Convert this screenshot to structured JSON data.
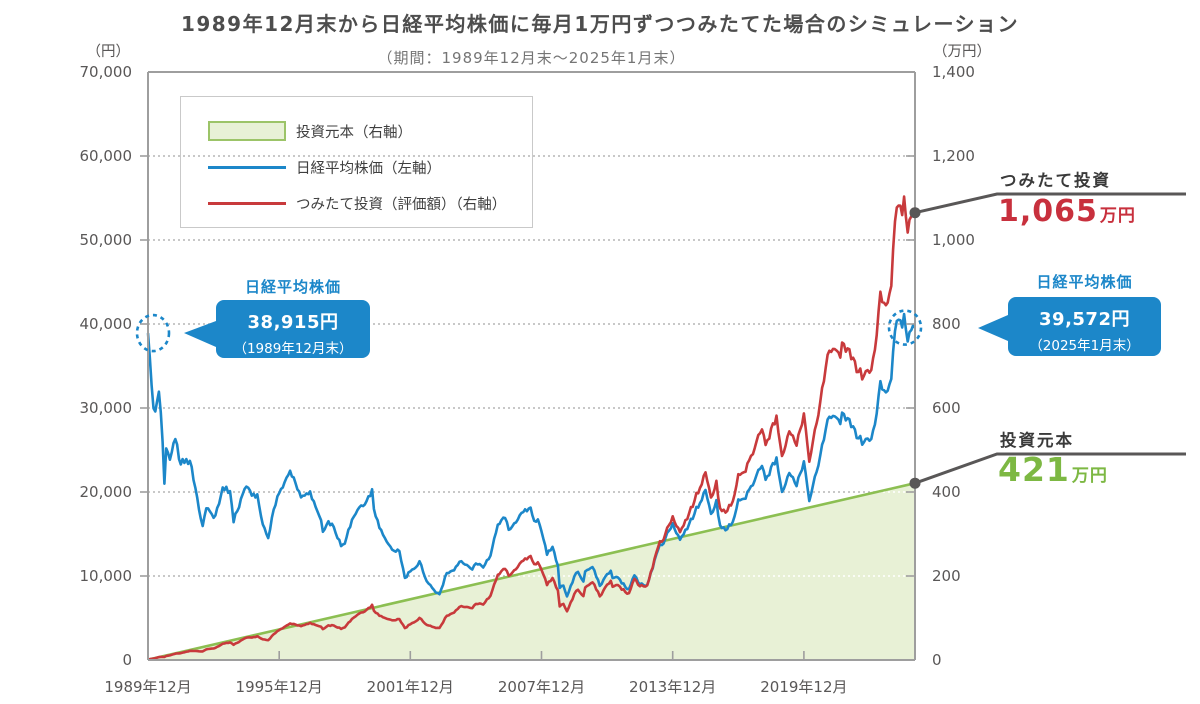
{
  "title": "1989年12月末から日経平均株価に毎月1万円ずつつみたてた場合のシミュレーション",
  "subtitle": "（期間：1989年12月末～2025年1月末）",
  "left_axis": {
    "unit": "（円）",
    "tick_labels": [
      "70,000",
      "60,000",
      "50,000",
      "40,000",
      "30,000",
      "20,000",
      "10,000",
      "0"
    ]
  },
  "right_axis": {
    "unit": "（万円）",
    "tick_labels": [
      "1,400",
      "1,200",
      "1,000",
      "800",
      "600",
      "400",
      "200",
      "0"
    ]
  },
  "legend": [
    {
      "label": "投資元本（右軸）",
      "swatch": "area-green"
    },
    {
      "label": "日経平均株価（左軸）",
      "swatch": "line-blue"
    },
    {
      "label": "つみたて投資（評価額）（右軸）",
      "swatch": "line-red"
    }
  ],
  "annotations": {
    "start": {
      "title": "日経平均株価",
      "value": "38,915円",
      "date": "（1989年12月末）"
    },
    "end": {
      "title": "日経平均株価",
      "value": "39,572円",
      "date": "（2025年1月末）"
    },
    "tsumitate": {
      "label": "つみたて投資",
      "value": "1,065",
      "unit": "万円"
    },
    "principal": {
      "label": "投資元本",
      "value": "421",
      "unit": "万円"
    }
  },
  "colors": {
    "nikkei_line": "#1c87c9",
    "tsumitate_line": "#c83a3c",
    "value_red": "#c8303d",
    "principal_fill": "#e8f1d6",
    "principal_edge": "#8cbf52",
    "value_green": "#7db843",
    "callout_gray": "#595757",
    "annotation_box": "#1c87c9",
    "grid": "#b5b5b5",
    "axis": "#9e9e9e",
    "tick_text": "#595757"
  },
  "chart_data": {
    "type": "line",
    "x_unit": "months since 1989-12",
    "total_months": 421,
    "left_axis": {
      "label": "円",
      "range": [
        0,
        70000
      ],
      "gridline_step": 10000
    },
    "right_axis": {
      "label": "万円",
      "range": [
        0,
        1400
      ],
      "gridline_step": 200
    },
    "grid": "dotted-horizontal",
    "legend_position": "top-left-inside",
    "x_ticks": [
      {
        "month": 0,
        "label": "1989年12月"
      },
      {
        "month": 72,
        "label": "1995年12月"
      },
      {
        "month": 144,
        "label": "2001年12月"
      },
      {
        "month": 216,
        "label": "2007年12月"
      },
      {
        "month": 288,
        "label": "2013年12月"
      },
      {
        "month": 360,
        "label": "2019年12月"
      }
    ],
    "series": [
      {
        "id": "principal",
        "name": "投資元本（右軸）",
        "axis": "right",
        "type": "area",
        "unit": "万円",
        "shape": "linear",
        "start_man": 1,
        "end_man": 421
      },
      {
        "id": "nikkei",
        "name": "日経平均株価（左軸）",
        "axis": "left",
        "type": "line",
        "unit": "円",
        "anchors": [
          [
            0,
            38915
          ],
          [
            3,
            29980
          ],
          [
            4,
            29585
          ],
          [
            6,
            31940
          ],
          [
            8,
            25978
          ],
          [
            9,
            20984
          ],
          [
            10,
            25194
          ],
          [
            12,
            23849
          ],
          [
            15,
            26292
          ],
          [
            18,
            23291
          ],
          [
            21,
            23916
          ],
          [
            24,
            22984
          ],
          [
            27,
            19346
          ],
          [
            30,
            15952
          ],
          [
            32,
            18061
          ],
          [
            36,
            16925
          ],
          [
            39,
            18591
          ],
          [
            41,
            20552
          ],
          [
            45,
            20106
          ],
          [
            47,
            16406
          ],
          [
            48,
            17417
          ],
          [
            54,
            20644
          ],
          [
            57,
            19564
          ],
          [
            60,
            19723
          ],
          [
            63,
            16140
          ],
          [
            66,
            14517
          ],
          [
            69,
            17913
          ],
          [
            72,
            19868
          ],
          [
            78,
            22531
          ],
          [
            84,
            19361
          ],
          [
            89,
            20069
          ],
          [
            92,
            18229
          ],
          [
            95,
            16636
          ],
          [
            96,
            15259
          ],
          [
            99,
            16527
          ],
          [
            102,
            15830
          ],
          [
            106,
            13565
          ],
          [
            108,
            13842
          ],
          [
            112,
            16702
          ],
          [
            115,
            17861
          ],
          [
            120,
            18934
          ],
          [
            123,
            20337
          ],
          [
            124,
            17974
          ],
          [
            127,
            15727
          ],
          [
            130,
            14540
          ],
          [
            132,
            13786
          ],
          [
            135,
            12999
          ],
          [
            138,
            12969
          ],
          [
            141,
            9775
          ],
          [
            144,
            10543
          ],
          [
            147,
            11025
          ],
          [
            149,
            11764
          ],
          [
            153,
            9383
          ],
          [
            156,
            8579
          ],
          [
            159,
            7973
          ],
          [
            160,
            7831
          ],
          [
            164,
            10343
          ],
          [
            168,
            10677
          ],
          [
            172,
            11762
          ],
          [
            175,
            11326
          ],
          [
            178,
            10772
          ],
          [
            180,
            11489
          ],
          [
            184,
            11009
          ],
          [
            188,
            12414
          ],
          [
            192,
            16111
          ],
          [
            196,
            16906
          ],
          [
            198,
            15505
          ],
          [
            204,
            17226
          ],
          [
            206,
            17604
          ],
          [
            210,
            18138
          ],
          [
            212,
            16569
          ],
          [
            214,
            16738
          ],
          [
            216,
            15308
          ],
          [
            219,
            12526
          ],
          [
            222,
            13481
          ],
          [
            225,
            11260
          ],
          [
            226,
            8577
          ],
          [
            228,
            8860
          ],
          [
            230,
            7568
          ],
          [
            234,
            9958
          ],
          [
            236,
            10493
          ],
          [
            239,
            9346
          ],
          [
            240,
            10546
          ],
          [
            244,
            11057
          ],
          [
            248,
            8824
          ],
          [
            252,
            10229
          ],
          [
            254,
            10624
          ],
          [
            255,
            9755
          ],
          [
            258,
            9816
          ],
          [
            263,
            8435
          ],
          [
            264,
            8455
          ],
          [
            267,
            10084
          ],
          [
            270,
            9007
          ],
          [
            274,
            8928
          ],
          [
            276,
            10395
          ],
          [
            281,
            13775
          ],
          [
            282,
            13677
          ],
          [
            288,
            16291
          ],
          [
            292,
            14304
          ],
          [
            297,
            16174
          ],
          [
            300,
            17451
          ],
          [
            306,
            20236
          ],
          [
            309,
            17388
          ],
          [
            312,
            19034
          ],
          [
            314,
            16027
          ],
          [
            318,
            15576
          ],
          [
            321,
            16450
          ],
          [
            324,
            19114
          ],
          [
            328,
            19197
          ],
          [
            334,
            22012
          ],
          [
            336,
            22765
          ],
          [
            337,
            23098
          ],
          [
            339,
            21454
          ],
          [
            345,
            24120
          ],
          [
            348,
            20015
          ],
          [
            352,
            22259
          ],
          [
            356,
            20704
          ],
          [
            360,
            23657
          ],
          [
            363,
            18917
          ],
          [
            368,
            23140
          ],
          [
            372,
            27444
          ],
          [
            374,
            28966
          ],
          [
            380,
            28090
          ],
          [
            381,
            29453
          ],
          [
            384,
            28792
          ],
          [
            387,
            27821
          ],
          [
            390,
            26393
          ],
          [
            393,
            25937
          ],
          [
            396,
            26095
          ],
          [
            399,
            28041
          ],
          [
            402,
            33189
          ],
          [
            405,
            31858
          ],
          [
            408,
            33464
          ],
          [
            410,
            39166
          ],
          [
            411,
            40369
          ],
          [
            414,
            39583
          ],
          [
            415,
            41190
          ],
          [
            417,
            37920
          ],
          [
            420,
            39895
          ],
          [
            421,
            39572
          ]
        ]
      },
      {
        "id": "tsumitate",
        "name": "つみたて投資（評価額）（右軸）",
        "axis": "right",
        "type": "line",
        "unit": "万円",
        "computed_from": "毎月1万円を日経平均株価で購入した評価額",
        "final_man": 1065
      }
    ],
    "callouts": {
      "nikkei_start": {
        "month": 0,
        "value": 38915
      },
      "nikkei_end": {
        "month": 421,
        "value": 39572
      },
      "tsumitate_end_man": 1065,
      "principal_end_man": 421
    }
  }
}
